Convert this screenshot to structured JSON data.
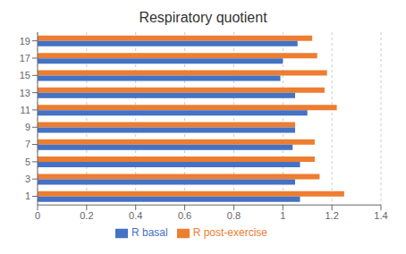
{
  "chart_data": {
    "type": "bar",
    "title": "Respiratory quotient",
    "orientation": "horizontal",
    "categories": [
      "1",
      "3",
      "5",
      "7",
      "9",
      "11",
      "13",
      "15",
      "17",
      "19"
    ],
    "series": [
      {
        "name": "R post-exercise",
        "color": "#ED7D31",
        "values": [
          1.25,
          1.15,
          1.13,
          1.13,
          1.05,
          1.22,
          1.17,
          1.18,
          1.14,
          1.12
        ]
      },
      {
        "name": "R basal",
        "color": "#4472C4",
        "values": [
          1.07,
          1.05,
          1.07,
          1.04,
          1.05,
          1.1,
          1.05,
          0.99,
          1.0,
          1.06
        ]
      }
    ],
    "xlim": [
      0,
      1.4
    ],
    "xticks": [
      0,
      0.2,
      0.4,
      0.6,
      0.8,
      1,
      1.2,
      1.4
    ],
    "grid": true,
    "legend": "bottom"
  }
}
